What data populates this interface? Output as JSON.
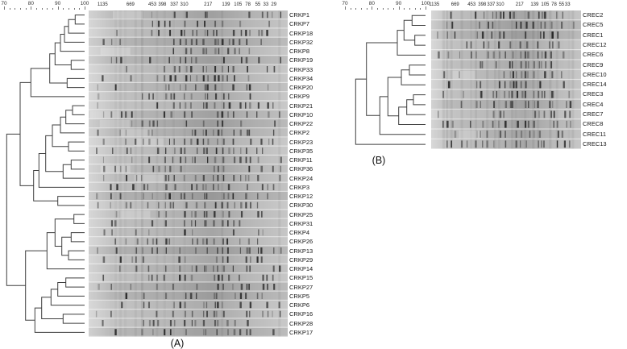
{
  "colors": {
    "tree": "#3f3f3f",
    "text": "#1a1a1a",
    "band": "#141414",
    "gel_base": "#c6c6c6"
  },
  "panels": [
    {
      "id": "A",
      "caption": "(A)",
      "similarity_scale": {
        "min": 70,
        "max": 100,
        "ticks": [
          "70",
          "80",
          "90",
          "100"
        ]
      },
      "marker_labels": [
        "1135",
        "669",
        "453",
        "398",
        "337",
        "310",
        "217",
        "139",
        "105",
        "78",
        "55",
        "33",
        "29"
      ],
      "marker_positions": [
        0.07,
        0.21,
        0.32,
        0.37,
        0.43,
        0.48,
        0.6,
        0.69,
        0.75,
        0.8,
        0.85,
        0.89,
        0.93
      ],
      "strains": [
        "CRKP1",
        "CRKP7",
        "CRKP18",
        "CRKP32",
        "CRKP8",
        "CRKP19",
        "CRKP33",
        "CRKP34",
        "CRKP20",
        "CRKP9",
        "CRKP21",
        "CRKP10",
        "CRKP22",
        "CRKP2",
        "CRKP23",
        "CRKP35",
        "CRKP11",
        "CRKP36",
        "CRKP24",
        "CRKP3",
        "CRKP12",
        "CRKP30",
        "CRKP25",
        "CRKP31",
        "CRKP4",
        "CRKP26",
        "CRKP13",
        "CRKP29",
        "CRKP14",
        "CRKP15",
        "CRKP27",
        "CRKP5",
        "CRKP6",
        "CRKP16",
        "CRKP28",
        "CRKP17"
      ],
      "dendrogram_merges": [
        [
          0,
          1,
          96.5
        ],
        [
          36,
          2,
          94
        ],
        [
          37,
          3,
          92.5
        ],
        [
          38,
          4,
          91
        ],
        [
          5,
          6,
          95
        ],
        [
          39,
          40,
          89
        ],
        [
          7,
          8,
          93.5
        ],
        [
          41,
          42,
          87
        ],
        [
          43,
          9,
          80
        ],
        [
          10,
          11,
          95.5
        ],
        [
          45,
          12,
          93
        ],
        [
          46,
          13,
          91
        ],
        [
          14,
          15,
          94
        ],
        [
          47,
          48,
          88
        ],
        [
          16,
          17,
          95
        ],
        [
          50,
          18,
          92
        ],
        [
          49,
          51,
          85.5
        ],
        [
          52,
          19,
          83
        ],
        [
          20,
          21,
          90
        ],
        [
          53,
          54,
          81
        ],
        [
          44,
          55,
          76
        ],
        [
          22,
          23,
          96
        ],
        [
          24,
          25,
          95
        ],
        [
          26,
          27,
          94
        ],
        [
          58,
          59,
          91.5
        ],
        [
          57,
          60,
          89
        ],
        [
          61,
          28,
          86
        ],
        [
          29,
          30,
          93
        ],
        [
          63,
          31,
          90
        ],
        [
          64,
          32,
          87.5
        ],
        [
          33,
          34,
          92
        ],
        [
          65,
          66,
          84
        ],
        [
          67,
          35,
          81.5
        ],
        [
          62,
          68,
          78
        ],
        [
          56,
          69,
          71
        ]
      ]
    },
    {
      "id": "B",
      "caption": "(B)",
      "similarity_scale": {
        "min": 70,
        "max": 100,
        "ticks": [
          "70",
          "80",
          "90",
          "100"
        ]
      },
      "marker_labels": [
        "1135",
        "669",
        "453",
        "398",
        "337",
        "310",
        "217",
        "139",
        "105",
        "78",
        "55",
        "33"
      ],
      "marker_positions": [
        0.02,
        0.16,
        0.27,
        0.34,
        0.4,
        0.46,
        0.59,
        0.69,
        0.76,
        0.82,
        0.87,
        0.91
      ],
      "strains": [
        "CREC2",
        "CREC5",
        "CREC1",
        "CREC12",
        "CREC6",
        "CREC9",
        "CREC10",
        "CREC14",
        "CREC3",
        "CREC4",
        "CREC7",
        "CREC8",
        "CREC11",
        "CREC13"
      ],
      "dendrogram_merges": [
        [
          0,
          1,
          95
        ],
        [
          2,
          3,
          96
        ],
        [
          14,
          15,
          92
        ],
        [
          16,
          4,
          89.5
        ],
        [
          5,
          6,
          94
        ],
        [
          18,
          7,
          91
        ],
        [
          8,
          9,
          95.5
        ],
        [
          20,
          10,
          93
        ],
        [
          21,
          11,
          90
        ],
        [
          19,
          22,
          86
        ],
        [
          23,
          12,
          83
        ],
        [
          17,
          24,
          78
        ],
        [
          25,
          13,
          74
        ]
      ]
    }
  ]
}
